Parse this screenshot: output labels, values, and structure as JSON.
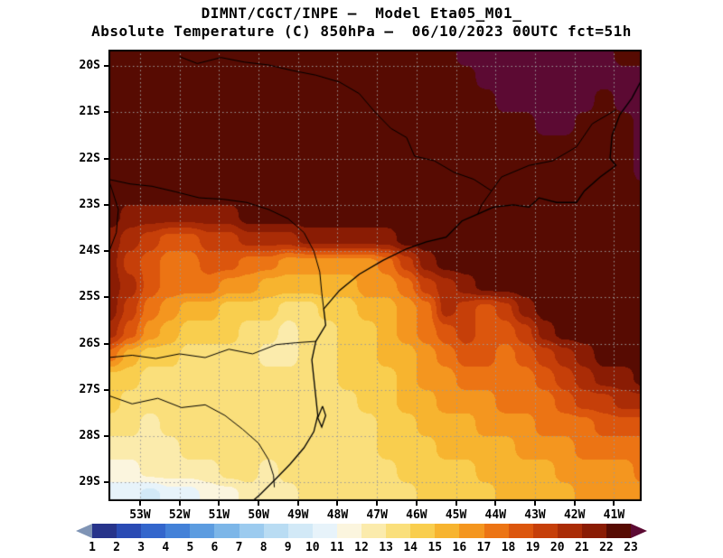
{
  "header": {
    "title_line1": "DIMNT/CGCT/INPE —  Model Eta05_M01_",
    "title_line2": "Absolute Temperature (C) 850hPa —  06/10/2023 00UTC fct=51h"
  },
  "chart_data": {
    "type": "heatmap",
    "title": "DIMNT/CGCT/INPE —  Model Eta05_M01_",
    "subtitle": "Absolute Temperature (C) 850hPa —  06/10/2023 00UTC fct=51h",
    "proj": {
      "lon_west": 53.8,
      "lon_east": 40.3,
      "lat_north": 19.65,
      "lat_south": 29.4
    },
    "x_ticks": [
      "53W",
      "52W",
      "51W",
      "50W",
      "49W",
      "48W",
      "47W",
      "46W",
      "45W",
      "44W",
      "43W",
      "42W",
      "41W"
    ],
    "x_tick_values": [
      53,
      52,
      51,
      50,
      49,
      48,
      47,
      46,
      45,
      44,
      43,
      42,
      41
    ],
    "y_ticks": [
      "20S",
      "21S",
      "22S",
      "23S",
      "24S",
      "25S",
      "26S",
      "27S",
      "28S",
      "29S"
    ],
    "y_tick_values": [
      20,
      21,
      22,
      23,
      24,
      25,
      26,
      27,
      28,
      29
    ],
    "levels": [
      1,
      2,
      3,
      4,
      5,
      6,
      7,
      8,
      9,
      10,
      11,
      12,
      13,
      14,
      15,
      16,
      17,
      18,
      19,
      20,
      21,
      22,
      23
    ],
    "palette": {
      "below": "#7f94b5",
      "colors": [
        "#27348b",
        "#2a4bb4",
        "#3366cc",
        "#4381d8",
        "#5c9ce0",
        "#7cb6e8",
        "#9ccbef",
        "#b9dcf3",
        "#d2e9f7",
        "#e7f3fa",
        "#fbf5de",
        "#fbebac",
        "#fadf7b",
        "#f9ce4e",
        "#f7b42f",
        "#f4961f",
        "#ec7414",
        "#dc560d",
        "#c63f09",
        "#aa2c06",
        "#8a1c04",
        "#570b02",
        "#5c0a33"
      ]
    },
    "grid": {
      "lon_start": 53.75,
      "lon_step": 0.5,
      "lat_start": 19.75,
      "lat_step": 0.5,
      "units": "C",
      "values": [
        [
          22,
          22,
          22,
          22,
          22,
          22,
          22,
          22,
          22,
          22,
          22,
          22,
          22,
          22,
          22,
          22,
          22,
          22,
          23,
          23,
          23,
          23,
          23,
          23,
          23,
          23,
          22,
          22
        ],
        [
          22,
          22,
          22,
          22,
          22,
          22,
          22,
          22,
          22,
          22,
          22,
          22,
          22,
          22,
          22,
          22,
          22,
          22,
          22,
          23,
          23,
          23,
          23,
          23,
          23,
          23,
          23,
          23
        ],
        [
          22,
          22,
          22,
          22,
          22,
          22,
          22,
          22,
          22,
          22,
          22,
          22,
          22,
          22,
          22,
          22,
          22,
          22,
          22,
          22,
          23,
          23,
          23,
          23,
          23,
          22,
          23,
          23
        ],
        [
          22,
          22,
          22,
          22,
          22,
          22,
          22,
          22,
          22,
          22,
          22,
          22,
          22,
          22,
          22,
          22,
          22,
          22,
          22,
          22,
          22,
          22,
          23,
          23,
          22,
          22,
          22,
          23
        ],
        [
          22,
          22,
          22,
          22,
          22,
          22,
          22,
          22,
          22,
          22,
          22,
          22,
          22,
          22,
          22,
          22,
          22,
          22,
          22,
          22,
          22,
          22,
          22,
          22,
          22,
          22,
          22,
          23
        ],
        [
          22,
          22,
          22,
          22,
          22,
          22,
          22,
          22,
          22,
          22,
          22,
          22,
          22,
          22,
          22,
          22,
          22,
          22,
          22,
          22,
          22,
          22,
          22,
          22,
          22,
          22,
          22,
          23
        ],
        [
          22,
          22,
          22,
          22,
          22,
          22,
          22,
          22,
          22,
          22,
          22,
          22,
          22,
          22,
          22,
          22,
          22,
          22,
          22,
          22,
          22,
          22,
          22,
          22,
          22,
          22,
          22,
          22
        ],
        [
          22,
          21,
          21,
          21,
          21,
          21,
          21,
          22,
          22,
          22,
          22,
          22,
          22,
          22,
          22,
          22,
          22,
          22,
          22,
          22,
          22,
          22,
          22,
          22,
          22,
          22,
          22,
          22
        ],
        [
          21,
          20,
          19,
          18,
          18,
          19,
          19,
          20,
          20,
          20,
          21,
          21,
          21,
          21,
          21,
          22,
          22,
          22,
          22,
          22,
          22,
          22,
          22,
          22,
          22,
          22,
          22,
          22
        ],
        [
          21,
          19,
          18,
          17,
          17,
          18,
          18,
          17,
          17,
          16,
          16,
          16,
          16,
          16,
          17,
          19,
          21,
          22,
          22,
          22,
          22,
          22,
          22,
          22,
          22,
          22,
          22,
          22
        ],
        [
          21,
          20,
          18,
          17,
          17,
          17,
          16,
          16,
          15,
          15,
          15,
          15,
          15,
          16,
          16,
          17,
          19,
          20,
          21,
          22,
          22,
          22,
          22,
          22,
          22,
          22,
          22,
          22
        ],
        [
          21,
          19,
          17,
          16,
          15,
          15,
          14,
          14,
          14,
          13,
          13,
          14,
          14,
          15,
          15,
          16,
          17,
          20,
          19,
          18,
          19,
          21,
          22,
          22,
          22,
          22,
          22,
          22
        ],
        [
          20,
          18,
          16,
          15,
          14,
          14,
          14,
          13,
          13,
          12,
          13,
          13,
          14,
          14,
          15,
          16,
          17,
          18,
          19,
          18,
          18,
          19,
          21,
          22,
          22,
          22,
          22,
          22
        ],
        [
          17,
          15,
          14,
          14,
          13,
          13,
          13,
          13,
          12,
          12,
          13,
          13,
          14,
          14,
          15,
          15,
          16,
          17,
          18,
          18,
          17,
          18,
          19,
          20,
          21,
          22,
          22,
          22
        ],
        [
          14,
          14,
          13,
          13,
          13,
          13,
          13,
          13,
          13,
          13,
          13,
          13,
          14,
          14,
          14,
          15,
          16,
          16,
          17,
          17,
          17,
          17,
          18,
          19,
          20,
          21,
          21,
          22
        ],
        [
          14,
          13,
          13,
          13,
          13,
          13,
          13,
          13,
          13,
          13,
          13,
          13,
          13,
          14,
          14,
          15,
          15,
          16,
          16,
          16,
          17,
          17,
          17,
          18,
          19,
          19,
          20,
          20
        ],
        [
          13,
          13,
          12,
          13,
          13,
          13,
          13,
          13,
          13,
          13,
          13,
          13,
          13,
          13,
          14,
          14,
          15,
          15,
          15,
          16,
          16,
          16,
          17,
          17,
          17,
          18,
          18,
          18
        ],
        [
          12,
          12,
          12,
          12,
          13,
          13,
          13,
          13,
          13,
          13,
          13,
          13,
          13,
          13,
          14,
          14,
          14,
          15,
          15,
          15,
          15,
          16,
          16,
          16,
          17,
          17,
          17,
          17
        ],
        [
          11,
          11,
          12,
          12,
          12,
          12,
          13,
          13,
          12,
          13,
          13,
          13,
          13,
          13,
          13,
          14,
          14,
          14,
          14,
          15,
          15,
          15,
          15,
          16,
          16,
          16,
          16,
          17
        ],
        [
          10,
          10,
          9,
          10,
          10,
          11,
          11,
          12,
          12,
          12,
          13,
          13,
          13,
          13,
          13,
          13,
          14,
          14,
          14,
          14,
          15,
          15,
          15,
          15,
          16,
          16,
          16,
          16
        ]
      ]
    },
    "coastline": [
      [
        [
          40.3,
          20.3
        ],
        [
          40.55,
          20.7
        ],
        [
          40.85,
          21.05
        ],
        [
          41.05,
          21.5
        ],
        [
          41.1,
          22.0
        ],
        [
          40.95,
          22.15
        ],
        [
          41.35,
          22.4
        ],
        [
          41.75,
          22.7
        ],
        [
          41.95,
          22.95
        ],
        [
          42.45,
          22.95
        ],
        [
          42.9,
          22.85
        ],
        [
          43.15,
          23.05
        ],
        [
          43.55,
          23.0
        ],
        [
          44.05,
          23.05
        ],
        [
          44.45,
          23.2
        ],
        [
          44.85,
          23.35
        ],
        [
          45.25,
          23.7
        ],
        [
          45.75,
          23.8
        ],
        [
          46.25,
          23.95
        ],
        [
          46.85,
          24.2
        ],
        [
          47.45,
          24.5
        ],
        [
          47.95,
          24.85
        ],
        [
          48.35,
          25.25
        ],
        [
          48.3,
          25.6
        ],
        [
          48.55,
          25.95
        ],
        [
          48.65,
          26.35
        ],
        [
          48.6,
          26.75
        ],
        [
          48.55,
          27.15
        ],
        [
          48.5,
          27.55
        ],
        [
          48.6,
          27.9
        ],
        [
          48.85,
          28.25
        ],
        [
          49.2,
          28.6
        ],
        [
          49.6,
          28.95
        ],
        [
          49.95,
          29.25
        ],
        [
          50.15,
          29.4
        ]
      ],
      [
        [
          48.38,
          27.35
        ],
        [
          48.3,
          27.55
        ],
        [
          48.4,
          27.8
        ],
        [
          48.5,
          27.6
        ],
        [
          48.38,
          27.35
        ]
      ]
    ],
    "borders": [
      [
        [
          53.8,
          22.45
        ],
        [
          53.25,
          22.55
        ],
        [
          52.7,
          22.6
        ],
        [
          52.1,
          22.72
        ],
        [
          51.5,
          22.85
        ],
        [
          50.9,
          22.88
        ],
        [
          50.3,
          22.95
        ],
        [
          49.75,
          23.1
        ],
        [
          49.25,
          23.3
        ],
        [
          48.85,
          23.6
        ],
        [
          48.6,
          24.0
        ],
        [
          48.45,
          24.45
        ],
        [
          48.4,
          24.9
        ],
        [
          48.35,
          25.25
        ]
      ],
      [
        [
          53.8,
          26.3
        ],
        [
          53.2,
          26.25
        ],
        [
          52.6,
          26.32
        ],
        [
          52.0,
          26.22
        ],
        [
          51.35,
          26.3
        ],
        [
          50.75,
          26.12
        ],
        [
          50.15,
          26.22
        ],
        [
          49.55,
          26.02
        ],
        [
          49.05,
          25.98
        ],
        [
          48.55,
          25.95
        ]
      ],
      [
        [
          53.8,
          27.12
        ],
        [
          53.2,
          27.3
        ],
        [
          52.55,
          27.18
        ],
        [
          51.95,
          27.38
        ],
        [
          51.35,
          27.32
        ],
        [
          50.85,
          27.55
        ],
        [
          50.4,
          27.85
        ],
        [
          50.0,
          28.15
        ],
        [
          49.75,
          28.5
        ],
        [
          49.62,
          28.85
        ],
        [
          49.6,
          29.1
        ]
      ],
      [
        [
          44.1,
          22.7
        ],
        [
          44.55,
          22.45
        ],
        [
          45.05,
          22.3
        ],
        [
          45.55,
          22.05
        ],
        [
          46.05,
          21.95
        ],
        [
          46.25,
          21.55
        ],
        [
          46.65,
          21.35
        ],
        [
          47.05,
          21.0
        ],
        [
          47.45,
          20.6
        ],
        [
          47.95,
          20.35
        ],
        [
          48.55,
          20.2
        ],
        [
          49.15,
          20.1
        ],
        [
          49.75,
          19.98
        ],
        [
          50.35,
          19.92
        ],
        [
          50.95,
          19.82
        ],
        [
          51.55,
          19.95
        ],
        [
          52.0,
          19.8
        ]
      ],
      [
        [
          44.1,
          22.7
        ],
        [
          44.35,
          23.0
        ],
        [
          44.45,
          23.2
        ]
      ],
      [
        [
          41.55,
          21.25
        ],
        [
          41.95,
          21.75
        ],
        [
          42.55,
          22.05
        ],
        [
          43.15,
          22.15
        ],
        [
          43.85,
          22.4
        ],
        [
          44.1,
          22.7
        ]
      ],
      [
        [
          40.95,
          20.95
        ],
        [
          41.55,
          21.25
        ]
      ],
      [
        [
          53.8,
          24.05
        ],
        [
          53.6,
          23.6
        ],
        [
          53.55,
          23.1
        ],
        [
          53.7,
          22.7
        ],
        [
          53.8,
          22.45
        ]
      ]
    ],
    "gridline_color": "#9a9a9a",
    "legend_position": "bottom"
  },
  "colorbar": {
    "labels": [
      "1",
      "2",
      "3",
      "4",
      "5",
      "6",
      "7",
      "8",
      "9",
      "10",
      "11",
      "12",
      "13",
      "14",
      "15",
      "16",
      "17",
      "18",
      "19",
      "20",
      "21",
      "22",
      "23"
    ]
  }
}
